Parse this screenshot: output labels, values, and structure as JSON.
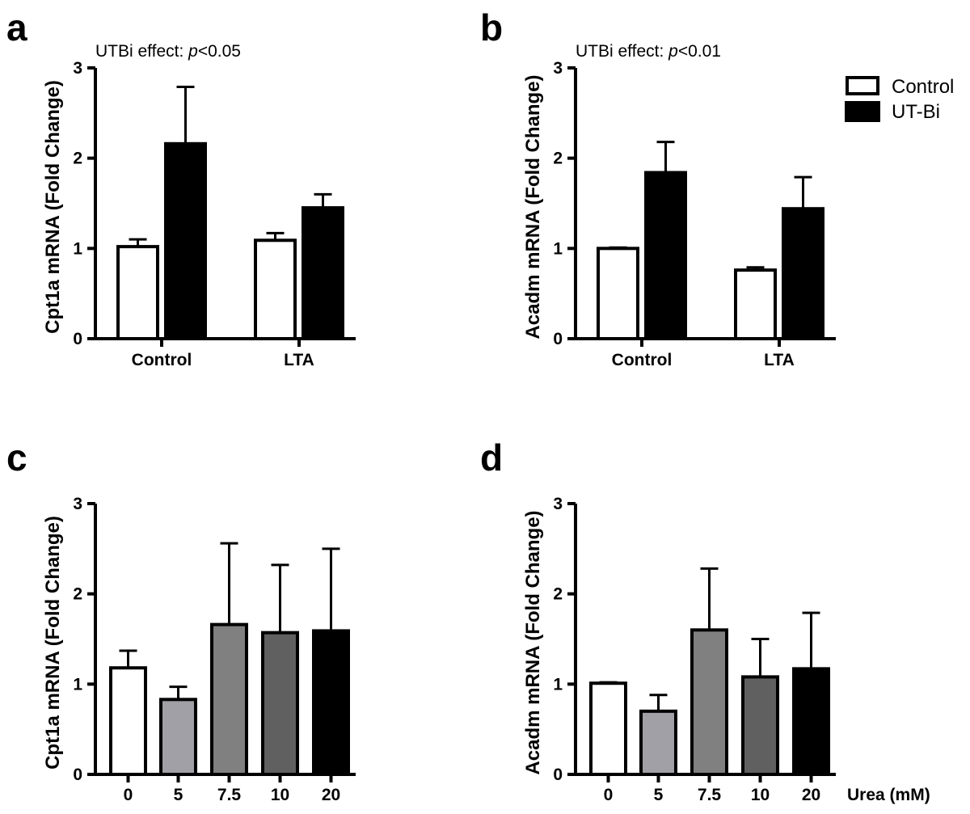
{
  "chart_data": [
    {
      "panel": "a",
      "type": "bar",
      "annotation": {
        "prefix": "UTBi effect: ",
        "p_symbol": "p",
        "value": "<0.05"
      },
      "ylabel": "Cpt1a mRNA (Fold Change)",
      "ylim": [
        0,
        3
      ],
      "yticks": [
        "0",
        "1",
        "2",
        "3"
      ],
      "categories": [
        "Control",
        "LTA"
      ],
      "series": [
        {
          "name": "Control",
          "fill": "#ffffff",
          "values": [
            1.02,
            1.09
          ],
          "errors": [
            0.08,
            0.08
          ]
        },
        {
          "name": "UT-Bi",
          "fill": "#000000",
          "values": [
            2.16,
            1.45
          ],
          "errors": [
            0.63,
            0.15
          ]
        }
      ]
    },
    {
      "panel": "b",
      "type": "bar",
      "annotation": {
        "prefix": "UTBi effect: ",
        "p_symbol": "p",
        "value": "<0.01"
      },
      "ylabel": "Acadm mRNA (Fold Change)",
      "ylim": [
        0,
        3
      ],
      "yticks": [
        "0",
        "1",
        "2",
        "3"
      ],
      "categories": [
        "Control",
        "LTA"
      ],
      "series": [
        {
          "name": "Control",
          "fill": "#ffffff",
          "values": [
            1.0,
            0.76
          ],
          "errors": [
            0.01,
            0.03
          ]
        },
        {
          "name": "UT-Bi",
          "fill": "#000000",
          "values": [
            1.84,
            1.44
          ],
          "errors": [
            0.34,
            0.35
          ]
        }
      ],
      "legend": {
        "placement": "top-right",
        "entries": [
          "Control",
          "UT-Bi"
        ]
      }
    },
    {
      "panel": "c",
      "type": "bar",
      "ylabel": "Cpt1a mRNA (Fold Change)",
      "ylim": [
        0,
        3
      ],
      "yticks": [
        "0",
        "1",
        "2",
        "3"
      ],
      "categories": [
        "0",
        "5",
        "7.5",
        "10",
        "20"
      ],
      "fills": [
        "#ffffff",
        "#a0a0a6",
        "#808080",
        "#606060",
        "#000000"
      ],
      "values": [
        1.18,
        0.83,
        1.66,
        1.57,
        1.59
      ],
      "errors": [
        0.19,
        0.14,
        0.9,
        0.75,
        0.91
      ]
    },
    {
      "panel": "d",
      "type": "bar",
      "ylabel": "Acadm mRNA (Fold Change)",
      "ylim": [
        0,
        3
      ],
      "yticks": [
        "0",
        "1",
        "2",
        "3"
      ],
      "categories": [
        "0",
        "5",
        "7.5",
        "10",
        "20"
      ],
      "fills": [
        "#ffffff",
        "#a0a0a6",
        "#808080",
        "#606060",
        "#000000"
      ],
      "values": [
        1.01,
        0.7,
        1.6,
        1.08,
        1.17
      ],
      "errors": [
        0.01,
        0.18,
        0.68,
        0.42,
        0.62
      ],
      "xunit": "Urea (mM)"
    }
  ]
}
